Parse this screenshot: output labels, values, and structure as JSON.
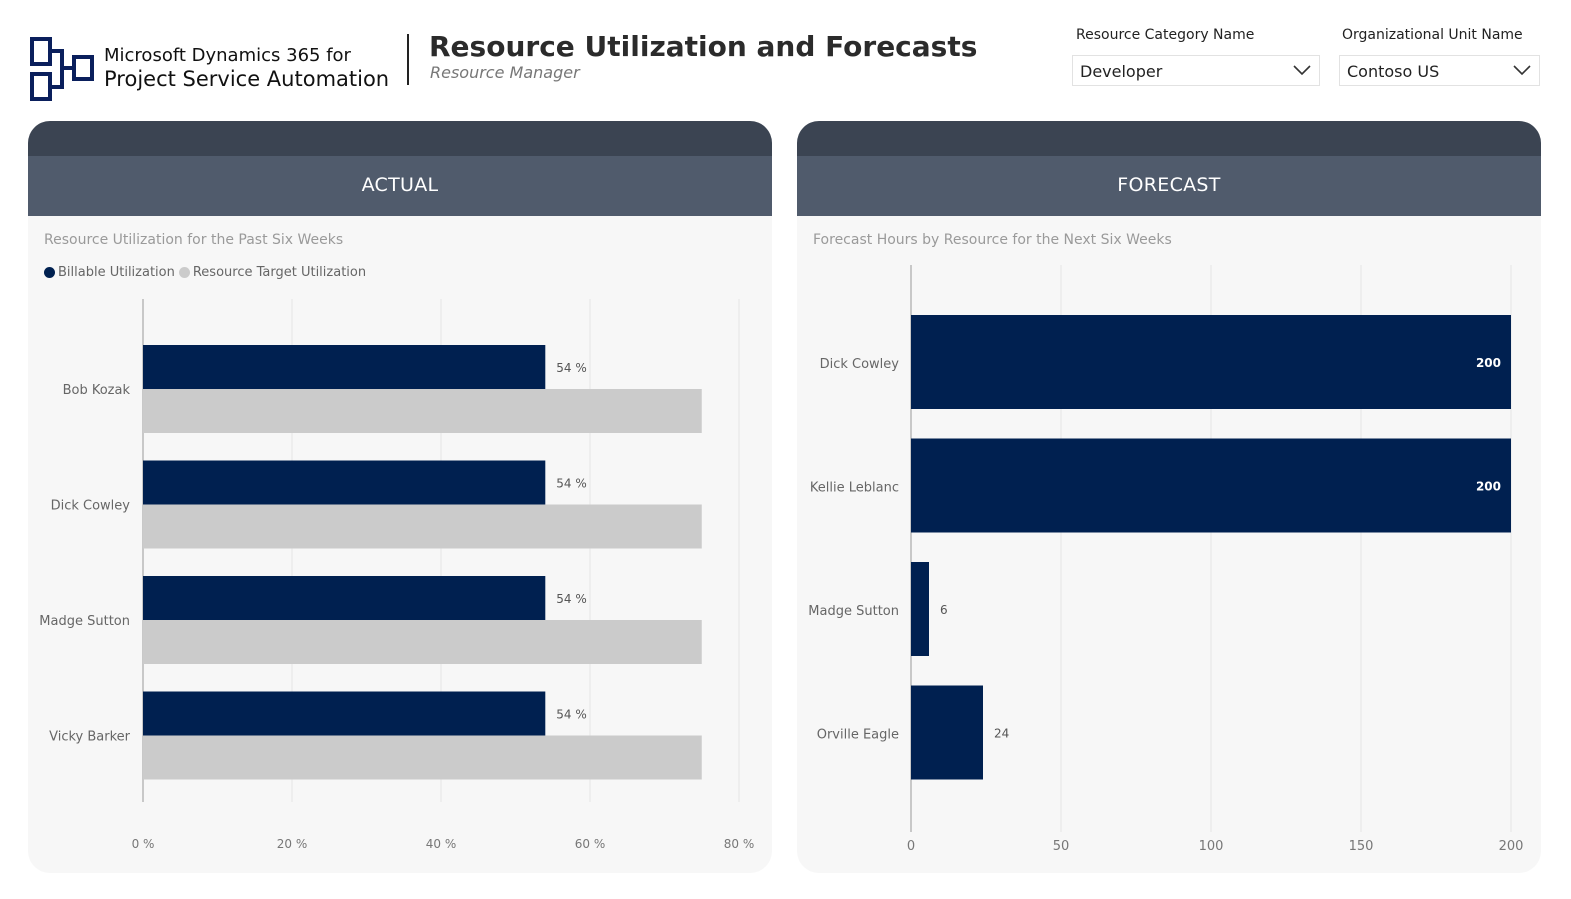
{
  "brand": {
    "line1": "Microsoft Dynamics 365 for",
    "line2": "Project Service Automation"
  },
  "header": {
    "title": "Resource Utilization and Forecasts",
    "subtitle": "Resource Manager"
  },
  "filters": {
    "category": {
      "label": "Resource Category Name",
      "value": "Developer"
    },
    "org_unit": {
      "label": "Organizational Unit Name",
      "value": "Contoso US"
    }
  },
  "colors": {
    "accent": "#002050",
    "target": "#cbcbcb",
    "panel_header": "#505b6c",
    "panel_cap": "#3b4452"
  },
  "actual": {
    "heading": "ACTUAL",
    "chart_title": "Resource Utilization for the Past Six Weeks",
    "legend": [
      "Billable Utilization",
      "Resource Target Utilization"
    ]
  },
  "forecast": {
    "heading": "FORECAST",
    "chart_title": "Forecast Hours by Resource for the Next Six Weeks"
  },
  "chart_data": [
    {
      "type": "bar",
      "orientation": "horizontal",
      "title": "Resource Utilization for the Past Six Weeks",
      "categories": [
        "Bob Kozak",
        "Dick Cowley",
        "Madge Sutton",
        "Vicky Barker"
      ],
      "series": [
        {
          "name": "Billable Utilization",
          "values": [
            54,
            54,
            54,
            54
          ],
          "labels": [
            "54 %",
            "54 %",
            "54 %",
            "54 %"
          ],
          "color": "#002050"
        },
        {
          "name": "Resource Target Utilization",
          "values": [
            75,
            75,
            75,
            75
          ],
          "color": "#cbcbcb"
        }
      ],
      "xlim": [
        0,
        80
      ],
      "ticks": [
        0,
        20,
        40,
        60,
        80
      ],
      "tick_labels": [
        "0 %",
        "20 %",
        "40 %",
        "60 %",
        "80 %"
      ],
      "grid": true,
      "legend": "top-left"
    },
    {
      "type": "bar",
      "orientation": "horizontal",
      "title": "Forecast Hours by Resource for the Next Six Weeks",
      "categories": [
        "Dick Cowley",
        "Kellie Leblanc",
        "Madge Sutton",
        "Orville Eagle"
      ],
      "values": [
        200,
        200,
        6,
        24
      ],
      "labels": [
        "200",
        "200",
        "6",
        "24"
      ],
      "color": "#002050",
      "xlim": [
        0,
        200
      ],
      "ticks": [
        0,
        50,
        100,
        150,
        200
      ],
      "tick_labels": [
        "0",
        "50",
        "100",
        "150",
        "200"
      ],
      "grid": true
    }
  ]
}
